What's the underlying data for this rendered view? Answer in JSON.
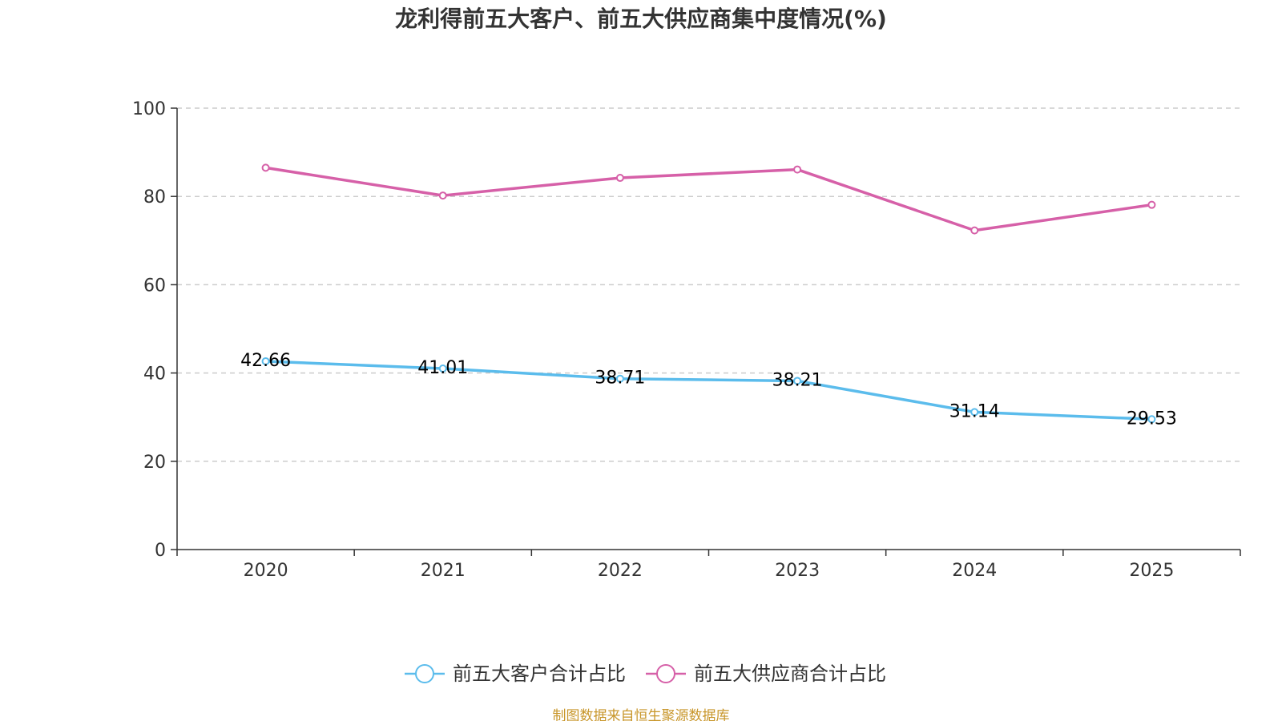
{
  "chart_data": {
    "type": "line",
    "title": "龙利得前五大客户、前五大供应商集中度情况(%)",
    "categories": [
      "2020",
      "2021",
      "2022",
      "2023",
      "2024",
      "2025"
    ],
    "ylim": [
      0,
      100
    ],
    "yticks": [
      "0",
      "20",
      "40",
      "60",
      "80",
      "100"
    ],
    "grid": true,
    "legend_position": "bottom",
    "series": [
      {
        "name": "前五大客户合计占比",
        "color": "#5bbcec",
        "values": [
          42.66,
          41.01,
          38.71,
          38.21,
          31.14,
          29.53
        ],
        "labels": [
          "42.66",
          "41.01",
          "38.71",
          "38.21",
          "31.14",
          "29.53"
        ]
      },
      {
        "name": "前五大供应商合计占比",
        "color": "#d660a8",
        "values": [
          86.5,
          80.2,
          84.2,
          86.1,
          72.3,
          78.1
        ]
      }
    ],
    "source": "制图数据来自恒生聚源数据库"
  }
}
